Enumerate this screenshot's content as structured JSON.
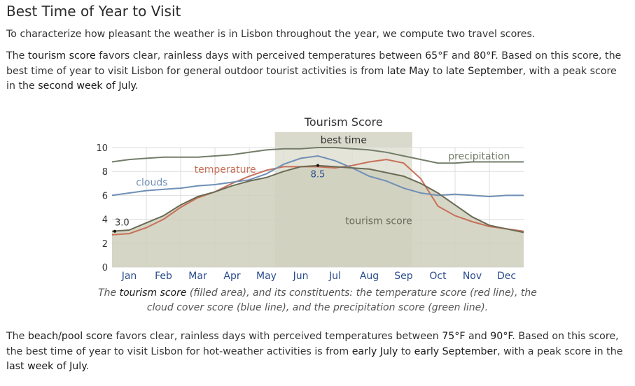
{
  "section_title": "Best Time of Year to Visit",
  "intro_text": "To characterize how pleasant the weather is in Lisbon throughout the year, we compute two travel scores.",
  "tourism_paragraph": {
    "t1": "The ",
    "link": "tourism score",
    "t2": " favors clear, rainless days with perceived temperatures between ",
    "low": "65°F",
    "t3": " and ",
    "high": "80°F",
    "t4": ". Based on this score, the best time of year to visit Lisbon for general outdoor tourist activities is from ",
    "start": "late May",
    "t5": " to ",
    "end": "late September",
    "t6": ", with a peak score in the ",
    "peak": "second week of July",
    "t7": "."
  },
  "beach_paragraph": {
    "t1": "The ",
    "link": "beach/pool score",
    "t2": " favors clear, rainless days with perceived temperatures between ",
    "low": "75°F",
    "t3": " and ",
    "high": "90°F",
    "t4": ". Based on this score, the best time of year to visit Lisbon for hot-weather activities is from ",
    "start": "early July",
    "t5": " to ",
    "end": "early September",
    "t6": ", with a peak score in the ",
    "peak": "last week of July",
    "t7": "."
  },
  "caption": {
    "t1": "The ",
    "score": "tourism score",
    "t2": " (filled area), and its constituents: the temperature score (red line), the",
    "t3": "cloud cover score (blue line), and the precipitation score (green line)."
  },
  "colors": {
    "fill": "#cfcfbd",
    "tourism_line": "#6b6b55",
    "temperature": "#c87058",
    "clouds": "#6f8fb5",
    "precipitation": "#737d69",
    "best_band": "#e4e4d8",
    "best_header": "#d9d9cc",
    "grid": "#dddddd",
    "month_text": "#2a4d8c"
  },
  "chart_data": {
    "type": "area",
    "title": "Tourism Score",
    "best_time_label": "best time",
    "best_time_range": [
      "late May",
      "late September"
    ],
    "ylim": [
      0,
      10
    ],
    "yticks": [
      "0",
      "2",
      "4",
      "6",
      "8",
      "10"
    ],
    "months": [
      "Jan",
      "Feb",
      "Mar",
      "Apr",
      "May",
      "Jun",
      "Jul",
      "Aug",
      "Sep",
      "Oct",
      "Nov",
      "Dec"
    ],
    "x": [
      0,
      0.5,
      1,
      1.5,
      2,
      2.5,
      3,
      3.5,
      4,
      4.5,
      5,
      5.5,
      6,
      6.5,
      7,
      7.5,
      8,
      8.5,
      9,
      9.5,
      10,
      10.5,
      11,
      11.5,
      12
    ],
    "series": [
      {
        "name": "tourism score",
        "values": [
          3.0,
          3.1,
          3.7,
          4.3,
          5.2,
          5.9,
          6.3,
          6.8,
          7.2,
          7.5,
          8.0,
          8.4,
          8.5,
          8.4,
          8.3,
          8.2,
          7.9,
          7.6,
          7.0,
          6.2,
          5.2,
          4.2,
          3.5,
          3.2,
          2.9
        ]
      },
      {
        "name": "temperature",
        "values": [
          2.7,
          2.8,
          3.3,
          4.0,
          5.0,
          5.8,
          6.3,
          7.0,
          7.6,
          8.1,
          8.4,
          8.4,
          8.4,
          8.3,
          8.5,
          8.8,
          9.0,
          8.7,
          7.4,
          5.1,
          4.3,
          3.8,
          3.4,
          3.2,
          3.0
        ]
      },
      {
        "name": "clouds",
        "values": [
          6.0,
          6.2,
          6.4,
          6.5,
          6.6,
          6.8,
          6.9,
          7.1,
          7.3,
          7.8,
          8.6,
          9.1,
          9.3,
          8.9,
          8.3,
          7.6,
          7.2,
          6.6,
          6.2,
          6.0,
          6.1,
          6.0,
          5.9,
          6.0,
          6.0
        ]
      },
      {
        "name": "precipitation",
        "values": [
          8.8,
          9.0,
          9.1,
          9.2,
          9.2,
          9.2,
          9.3,
          9.4,
          9.6,
          9.8,
          9.9,
          9.9,
          10.0,
          10.0,
          9.9,
          9.8,
          9.6,
          9.3,
          9.0,
          8.7,
          8.7,
          8.8,
          8.8,
          8.8,
          8.8
        ]
      }
    ],
    "annotations": [
      {
        "text": "3.0",
        "x": 0,
        "y": 3.0
      },
      {
        "text": "8.5",
        "x": 6,
        "y": 8.5
      }
    ]
  }
}
